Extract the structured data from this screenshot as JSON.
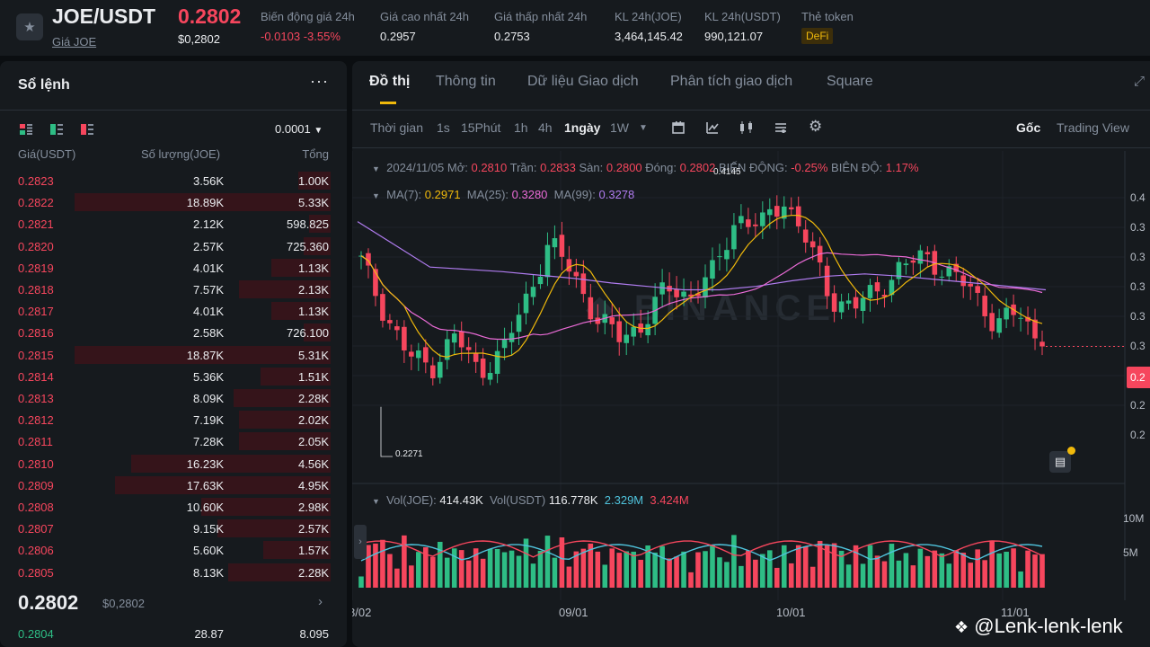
{
  "header": {
    "pair": "JOE/USDT",
    "pair_link": "Giá JOE",
    "last_price": "0.2802",
    "last_price_usd": "$0,2802",
    "stats": [
      {
        "label": "Biến động giá 24h",
        "value": "-0.0103 -3.55%"
      },
      {
        "label": "Giá cao nhất 24h",
        "value": "0.2957"
      },
      {
        "label": "Giá thấp nhất 24h",
        "value": "0.2753"
      },
      {
        "label": "KL 24h(JOE)",
        "value": "3,464,145.42"
      },
      {
        "label": "KL 24h(USDT)",
        "value": "990,121.07"
      },
      {
        "label": "Thẻ token",
        "value": "DeFi"
      }
    ],
    "colors": {
      "up": "#2ebd85",
      "down": "#f6465d",
      "accent": "#f0b90b"
    }
  },
  "orderbook": {
    "title": "Sổ lệnh",
    "precision": "0.0001",
    "columns": [
      "Giá(USDT)",
      "Số lượng(JOE)",
      "Tổng"
    ],
    "asks": [
      {
        "price": "0.2823",
        "qty": "3.56K",
        "total": "1.00K",
        "depth": 0.12
      },
      {
        "price": "0.2822",
        "qty": "18.89K",
        "total": "5.33K",
        "depth": 0.95
      },
      {
        "price": "0.2821",
        "qty": "2.12K",
        "total": "598.825",
        "depth": 0.08
      },
      {
        "price": "0.2820",
        "qty": "2.57K",
        "total": "725.360",
        "depth": 0.1
      },
      {
        "price": "0.2819",
        "qty": "4.01K",
        "total": "1.13K",
        "depth": 0.22
      },
      {
        "price": "0.2818",
        "qty": "7.57K",
        "total": "2.13K",
        "depth": 0.34
      },
      {
        "price": "0.2817",
        "qty": "4.01K",
        "total": "1.13K",
        "depth": 0.22
      },
      {
        "price": "0.2816",
        "qty": "2.58K",
        "total": "726.100",
        "depth": 0.1
      },
      {
        "price": "0.2815",
        "qty": "18.87K",
        "total": "5.31K",
        "depth": 0.95
      },
      {
        "price": "0.2814",
        "qty": "5.36K",
        "total": "1.51K",
        "depth": 0.26
      },
      {
        "price": "0.2813",
        "qty": "8.09K",
        "total": "2.28K",
        "depth": 0.36
      },
      {
        "price": "0.2812",
        "qty": "7.19K",
        "total": "2.02K",
        "depth": 0.34
      },
      {
        "price": "0.2811",
        "qty": "7.28K",
        "total": "2.05K",
        "depth": 0.34
      },
      {
        "price": "0.2810",
        "qty": "16.23K",
        "total": "4.56K",
        "depth": 0.74
      },
      {
        "price": "0.2809",
        "qty": "17.63K",
        "total": "4.95K",
        "depth": 0.8
      },
      {
        "price": "0.2808",
        "qty": "10.60K",
        "total": "2.98K",
        "depth": 0.48
      },
      {
        "price": "0.2807",
        "qty": "9.15K",
        "total": "2.57K",
        "depth": 0.42
      },
      {
        "price": "0.2806",
        "qty": "5.60K",
        "total": "1.57K",
        "depth": 0.25
      },
      {
        "price": "0.2805",
        "qty": "8.13K",
        "total": "2.28K",
        "depth": 0.38
      }
    ],
    "mid_price": "0.2802",
    "mid_price_usd": "$0,2802",
    "bids": [
      {
        "price": "0.2804",
        "qty": "28.87",
        "total": "8.095"
      }
    ]
  },
  "chart_panel": {
    "tabs": [
      "Đồ thị",
      "Thông tin",
      "Dữ liệu Giao dịch",
      "Phân tích giao dịch",
      "Square"
    ],
    "toolbar": {
      "label": "Thời gian",
      "intervals": [
        "1s",
        "15Phút",
        "1h",
        "4h",
        "1ngày",
        "1W"
      ],
      "active_interval": "1ngày",
      "icons": [
        "calendar-icon",
        "indicator-icon",
        "candle-type-icon",
        "layout-icon",
        "settings-icon"
      ],
      "views": [
        "Gốc",
        "Trading View"
      ]
    },
    "ohlc_legend": {
      "date": "2024/11/05",
      "open_label": "Mở:",
      "open": "0.2810",
      "high_label": "Trần:",
      "high": "0.2833",
      "low_label": "Sàn:",
      "low": "0.2800",
      "close_label": "Đóng:",
      "close": "0.2802",
      "change_label": "BIẾN ĐỘNG:",
      "change": "-0.25%",
      "amp_label": "BIÊN ĐỘ:",
      "amp": "1.17%"
    },
    "ma_legend": [
      {
        "label": "MA(7):",
        "value": "0.2971",
        "color": "#f0b90b"
      },
      {
        "label": "MA(25):",
        "value": "0.3280",
        "color": "#eb6bd7"
      },
      {
        "label": "MA(99):",
        "value": "0.3278",
        "color": "#b07cf0"
      }
    ],
    "vol_legend": {
      "label1": "Vol(JOE):",
      "value1": "414.43K",
      "label2": "Vol(USDT)",
      "value2": "116.778K",
      "ma1": "2.329M",
      "ma2": "3.424M"
    },
    "price_axis": [
      "0.4",
      "0.3",
      "0.3",
      "0.3",
      "0.3",
      "0.3",
      "0.2",
      "0.2"
    ],
    "current_price_tag": "0.2",
    "volume_axis": [
      "10M",
      "5M"
    ],
    "x_labels": [
      "8/02",
      "09/01",
      "10/01",
      "11/01"
    ],
    "high_marker": "0.4145",
    "low_marker": "0.2271",
    "watermark": "BINANCE"
  },
  "footer": {
    "handle": "@Lenk-lenk-lenk"
  },
  "chart_data": {
    "type": "candlestick",
    "series": [
      {
        "name": "MA(7)",
        "color": "#f0b90b"
      },
      {
        "name": "MA(25)",
        "color": "#eb6bd7"
      },
      {
        "name": "MA(99)",
        "color": "#b07cf0"
      }
    ],
    "y_range": [
      0.215,
      0.43
    ],
    "anchors": [
      [
        0.355,
        0.36
      ],
      [
        0.31,
        0.305
      ],
      [
        0.272,
        0.245
      ],
      [
        0.262,
        0.262
      ],
      [
        0.29,
        0.295
      ],
      [
        0.258,
        0.27
      ],
      [
        0.275,
        0.275
      ],
      [
        0.32,
        0.32
      ],
      [
        0.372,
        0.375
      ],
      [
        0.345,
        0.335
      ],
      [
        0.305,
        0.31
      ],
      [
        0.288,
        0.3
      ],
      [
        0.3,
        0.3
      ],
      [
        0.332,
        0.332
      ],
      [
        0.325,
        0.32
      ],
      [
        0.345,
        0.345
      ],
      [
        0.395,
        0.4
      ],
      [
        0.385,
        0.385
      ],
      [
        0.41,
        0.41
      ],
      [
        0.372,
        0.37
      ],
      [
        0.322,
        0.322
      ],
      [
        0.315,
        0.31
      ],
      [
        0.33,
        0.33
      ],
      [
        0.35,
        0.35
      ],
      [
        0.36,
        0.365
      ],
      [
        0.345,
        0.345
      ],
      [
        0.33,
        0.33
      ],
      [
        0.3,
        0.3
      ],
      [
        0.31,
        0.31
      ],
      [
        0.2802,
        0.2802
      ]
    ],
    "ma99_anchors": [
      0.39,
      0.37,
      0.35,
      0.348,
      0.346,
      0.343,
      0.34,
      0.336,
      0.333,
      0.33,
      0.33,
      0.333,
      0.338,
      0.342,
      0.344,
      0.342,
      0.339,
      0.336,
      0.333,
      0.33
    ],
    "high": 0.4145,
    "low": 0.2271,
    "last_close": 0.2802
  }
}
